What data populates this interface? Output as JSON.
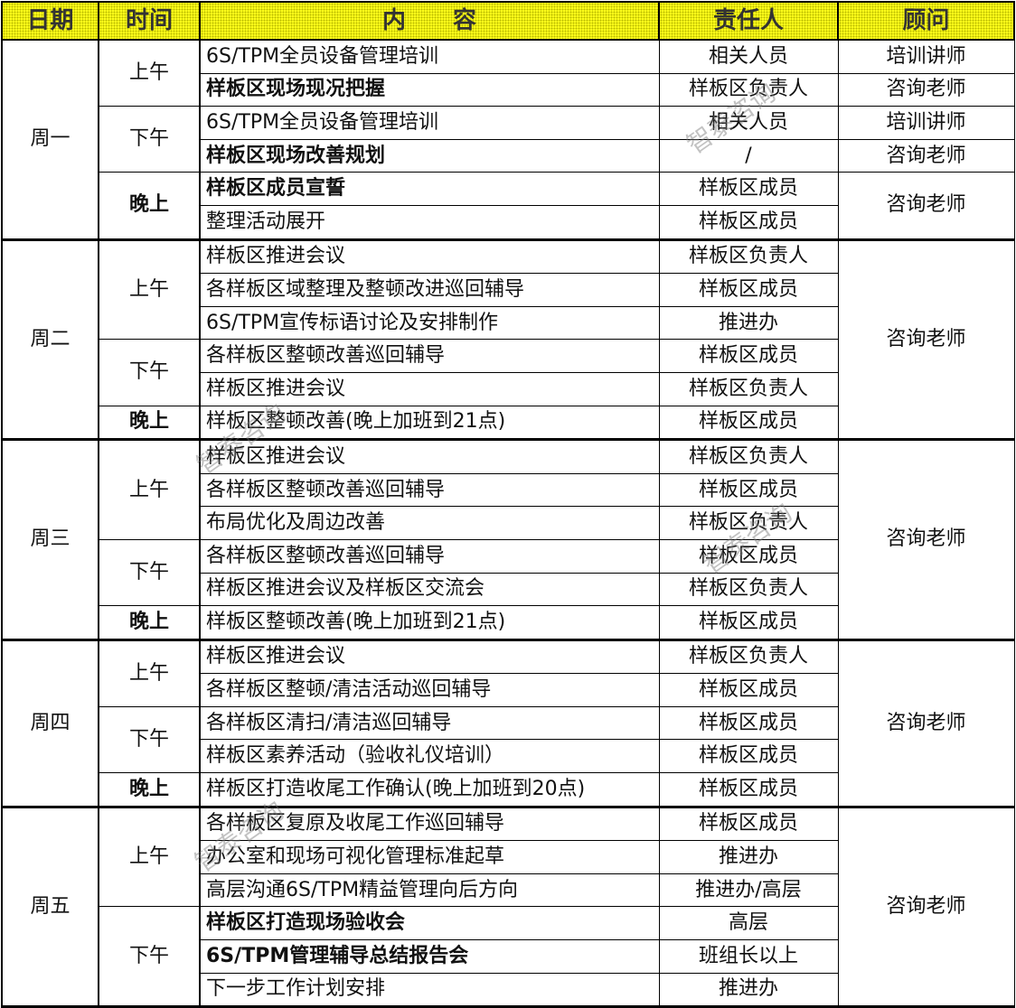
{
  "header": {
    "date": "日期",
    "time": "时间",
    "content": "内　　容",
    "person": "责任人",
    "advisor": "顾问"
  },
  "watermark": "智泰咨询",
  "days": [
    {
      "name": "周一",
      "periods": [
        {
          "label": "上午",
          "bold": false,
          "rows": [
            {
              "content": "6S/TPM全员设备管理培训",
              "bold": false,
              "person": "相关人员"
            },
            {
              "content": "样板区现场现况把握",
              "bold": true,
              "person": "样板区负责人"
            }
          ]
        },
        {
          "label": "下午",
          "bold": false,
          "rows": [
            {
              "content": "6S/TPM全员设备管理培训",
              "bold": false,
              "person": "相关人员"
            },
            {
              "content": "样板区现场改善规划",
              "bold": true,
              "person": "/"
            }
          ]
        },
        {
          "label": "晚上",
          "bold": true,
          "rows": [
            {
              "content": "样板区成员宣誓",
              "bold": true,
              "person": "样板区成员"
            },
            {
              "content": "整理活动展开",
              "bold": false,
              "person": "样板区成员"
            }
          ]
        }
      ],
      "advisors": [
        {
          "text": "培训讲师",
          "span": 1
        },
        {
          "text": "咨询老师",
          "span": 1
        },
        {
          "text": "培训讲师",
          "span": 1
        },
        {
          "text": "咨询老师",
          "span": 1
        },
        {
          "text": "咨询老师",
          "span": 2
        }
      ]
    },
    {
      "name": "周二",
      "periods": [
        {
          "label": "上午",
          "bold": false,
          "rows": [
            {
              "content": "样板区推进会议",
              "bold": false,
              "person": "样板区负责人"
            },
            {
              "content": "各样板区域整理及整顿改进巡回辅导",
              "bold": false,
              "person": "样板区成员"
            },
            {
              "content": "6S/TPM宣传标语讨论及安排制作",
              "bold": false,
              "person": "推进办"
            }
          ]
        },
        {
          "label": "下午",
          "bold": false,
          "rows": [
            {
              "content": "各样板区整顿改善巡回辅导",
              "bold": false,
              "person": "样板区成员"
            },
            {
              "content": "样板区推进会议",
              "bold": false,
              "person": "样板区负责人"
            }
          ]
        },
        {
          "label": "晚上",
          "bold": true,
          "rows": [
            {
              "content": "样板区整顿改善(晚上加班到21点)",
              "bold": false,
              "person": "样板区成员"
            }
          ]
        }
      ],
      "advisors": [
        {
          "text": "咨询老师",
          "span": 6
        }
      ]
    },
    {
      "name": "周三",
      "periods": [
        {
          "label": "上午",
          "bold": false,
          "rows": [
            {
              "content": "样板区推进会议",
              "bold": false,
              "person": "样板区负责人"
            },
            {
              "content": "各样板区整顿改善巡回辅导",
              "bold": false,
              "person": "样板区成员"
            },
            {
              "content": "布局优化及周边改善",
              "bold": false,
              "person": "样板区负责人"
            }
          ]
        },
        {
          "label": "下午",
          "bold": false,
          "rows": [
            {
              "content": "各样板区整顿改善巡回辅导",
              "bold": false,
              "person": "样板区成员"
            },
            {
              "content": "样板区推进会议及样板区交流会",
              "bold": false,
              "person": "样板区负责人"
            }
          ]
        },
        {
          "label": "晚上",
          "bold": true,
          "rows": [
            {
              "content": "样板区整顿改善(晚上加班到21点)",
              "bold": false,
              "person": "样板区成员"
            }
          ]
        }
      ],
      "advisors": [
        {
          "text": "咨询老师",
          "span": 6
        }
      ]
    },
    {
      "name": "周四",
      "periods": [
        {
          "label": "上午",
          "bold": false,
          "rows": [
            {
              "content": "样板区推进会议",
              "bold": false,
              "person": "样板区负责人"
            },
            {
              "content": "各样板区整顿/清洁活动巡回辅导",
              "bold": false,
              "person": "样板区成员"
            }
          ]
        },
        {
          "label": "下午",
          "bold": false,
          "rows": [
            {
              "content": "各样板区清扫/清洁巡回辅导",
              "bold": false,
              "person": "样板区成员"
            },
            {
              "content": "样板区素养活动（验收礼仪培训）",
              "bold": false,
              "person": "样板区成员"
            }
          ]
        },
        {
          "label": "晚上",
          "bold": true,
          "rows": [
            {
              "content": "样板区打造收尾工作确认(晚上加班到20点)",
              "bold": false,
              "person": "样板区成员"
            }
          ]
        }
      ],
      "advisors": [
        {
          "text": "咨询老师",
          "span": 5
        }
      ]
    },
    {
      "name": "周五",
      "periods": [
        {
          "label": "上午",
          "bold": false,
          "rows": [
            {
              "content": "各样板区复原及收尾工作巡回辅导",
              "bold": false,
              "person": "样板区成员"
            },
            {
              "content": "办公室和现场可视化管理标准起草",
              "bold": false,
              "person": "推进办"
            },
            {
              "content": "高层沟通6S/TPM精益管理向后方向",
              "bold": false,
              "person": "推进办/高层"
            }
          ]
        },
        {
          "label": "下午",
          "bold": false,
          "rows": [
            {
              "content": "样板区打造现场验收会",
              "bold": true,
              "person": "高层"
            },
            {
              "content": "6S/TPM管理辅导总结报告会",
              "bold": true,
              "person": "班组长以上"
            },
            {
              "content": "下一步工作计划安排",
              "bold": false,
              "person": "推进办"
            }
          ]
        }
      ],
      "advisors": [
        {
          "text": "咨询老师",
          "span": 6
        }
      ]
    }
  ]
}
